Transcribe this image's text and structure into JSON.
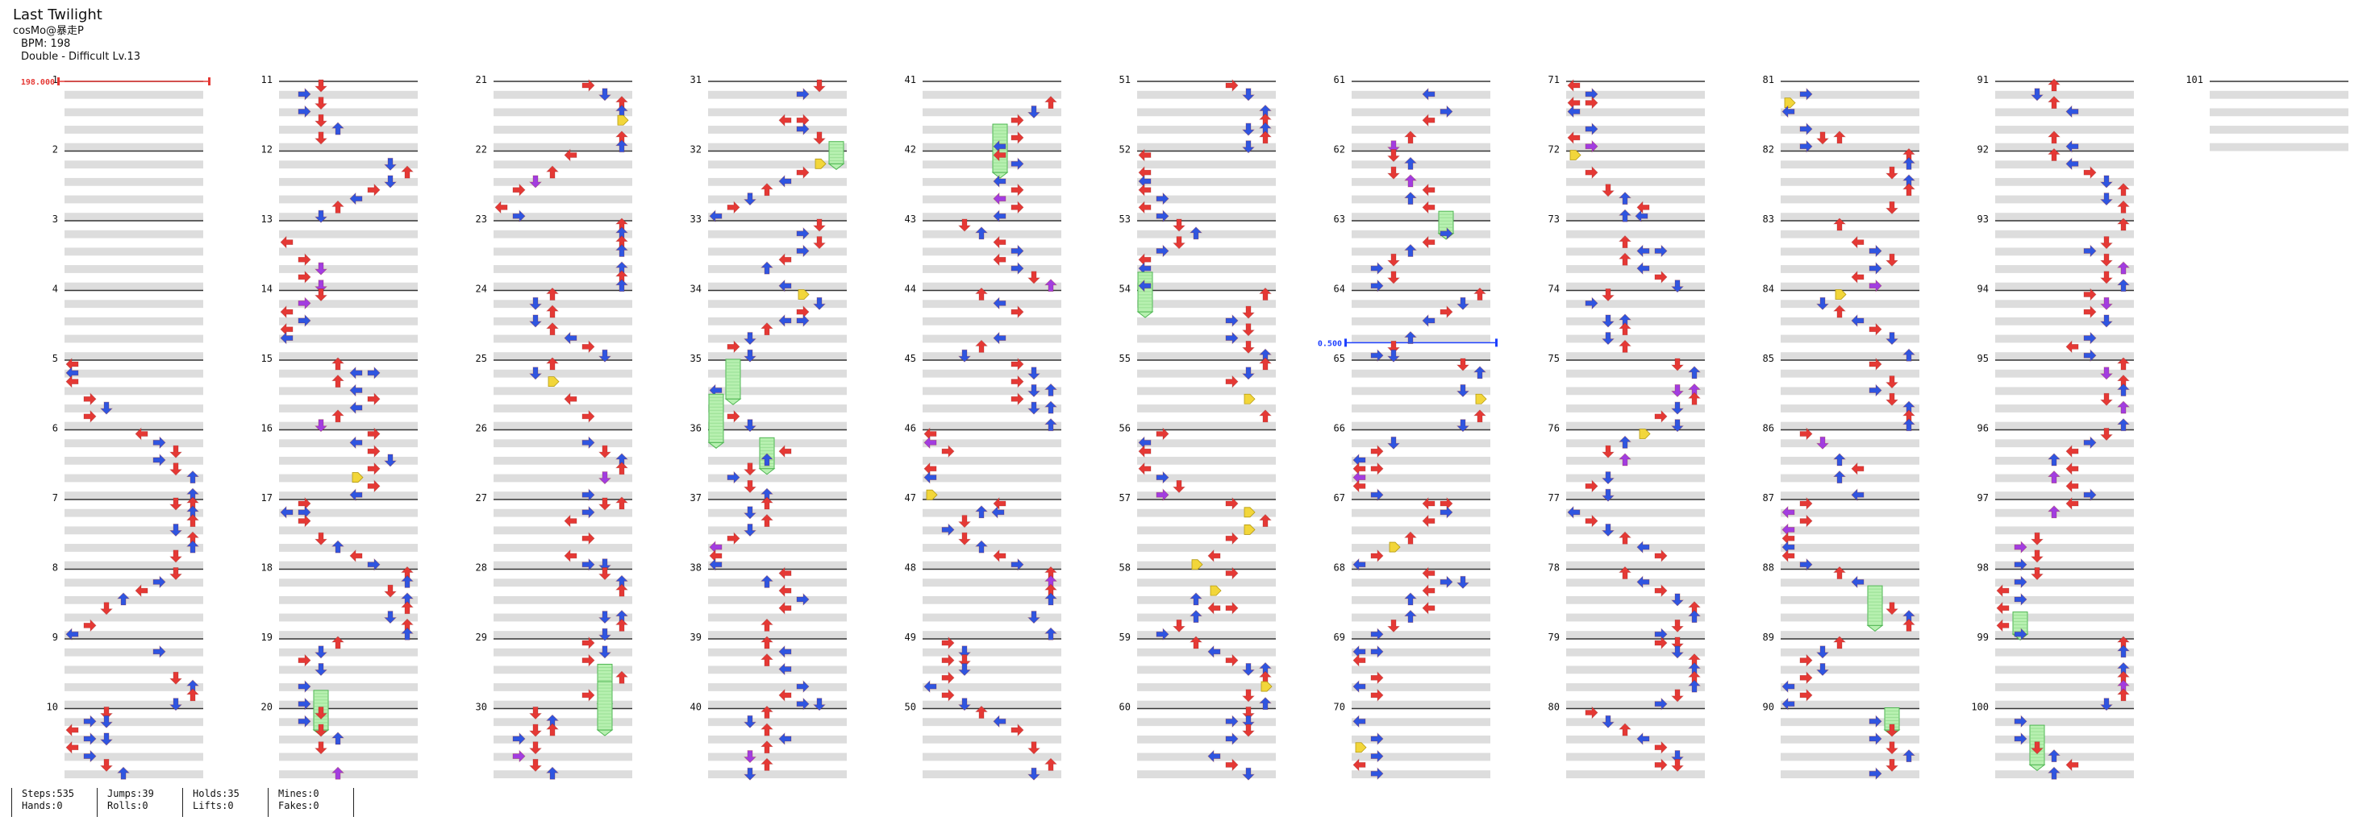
{
  "song": {
    "title": "Last Twilight",
    "artist": "cosMo@暴走P",
    "bpm_text": "BPM: 198",
    "difficulty_text": "Double - Difficult Lv.13"
  },
  "chart": {
    "measure_count": 101,
    "measures_per_column": 10,
    "bpm_marker": {
      "measure": 1,
      "label": "198.000",
      "color": "#e53935"
    },
    "stop_marker": {
      "measure": 64.75,
      "label": "0.500",
      "color": "#1e40ff"
    }
  },
  "stats": [
    {
      "top": "Steps:535",
      "bottom": "Hands:0"
    },
    {
      "top": "Jumps:39",
      "bottom": "Rolls:0"
    },
    {
      "top": "Holds:35",
      "bottom": "Lifts:0"
    },
    {
      "top": "Mines:0",
      "bottom": "Fakes:0"
    }
  ],
  "colors": {
    "quarter": "#e53935",
    "eighth": "#2f55e0",
    "sixteenth": "#a23de0",
    "mine": "#f2d63a",
    "hold_fill": "#b7f0b0",
    "hold_edge": "#4fb653",
    "band_gray": "#dddddd",
    "bar_line": "#333333"
  },
  "icons": {
    "note": "arrow-note-icon",
    "mine": "mine-icon",
    "hold": "hold-body-icon"
  }
}
